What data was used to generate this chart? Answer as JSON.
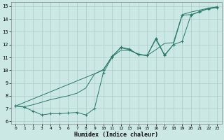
{
  "xlabel": "Humidex (Indice chaleur)",
  "bg_color": "#cce8e4",
  "grid_color": "#aaccc8",
  "line_color": "#2a7a6a",
  "xlim": [
    -0.5,
    23.5
  ],
  "ylim": [
    5.8,
    15.3
  ],
  "xticks": [
    0,
    1,
    2,
    3,
    4,
    5,
    6,
    7,
    8,
    9,
    10,
    11,
    12,
    13,
    14,
    15,
    16,
    17,
    18,
    19,
    20,
    21,
    22,
    23
  ],
  "yticks": [
    6,
    7,
    8,
    9,
    10,
    11,
    12,
    13,
    14,
    15
  ],
  "line1_x": [
    0,
    1,
    2,
    3,
    4,
    5,
    6,
    7,
    8,
    9,
    10,
    11,
    12,
    13,
    14,
    15,
    16,
    17,
    18,
    19,
    20,
    21,
    22,
    23
  ],
  "line1_y": [
    7.2,
    7.1,
    6.8,
    6.5,
    6.6,
    6.6,
    6.65,
    6.7,
    6.5,
    7.0,
    9.8,
    11.0,
    11.8,
    11.65,
    11.2,
    11.15,
    12.5,
    11.2,
    12.0,
    12.25,
    14.3,
    14.6,
    14.8,
    14.9
  ],
  "line2_x": [
    0,
    1,
    2,
    3,
    4,
    5,
    6,
    7,
    8,
    9,
    10,
    11,
    12,
    13,
    14,
    15,
    16,
    17,
    18,
    19,
    20,
    21,
    22,
    23
  ],
  "line2_y": [
    7.2,
    7.15,
    7.3,
    7.5,
    7.7,
    7.85,
    8.0,
    8.2,
    8.6,
    9.7,
    10.05,
    11.05,
    11.55,
    11.55,
    11.25,
    11.15,
    11.6,
    12.1,
    12.15,
    14.35,
    14.55,
    14.7,
    14.85,
    14.95
  ],
  "line3_x": [
    0,
    10,
    11,
    12,
    13,
    14,
    15,
    16,
    17,
    18,
    19,
    20,
    21,
    22,
    23
  ],
  "line3_y": [
    7.2,
    10.0,
    11.1,
    11.75,
    11.6,
    11.25,
    11.15,
    12.4,
    11.15,
    12.0,
    14.3,
    14.35,
    14.55,
    14.85,
    14.95
  ]
}
